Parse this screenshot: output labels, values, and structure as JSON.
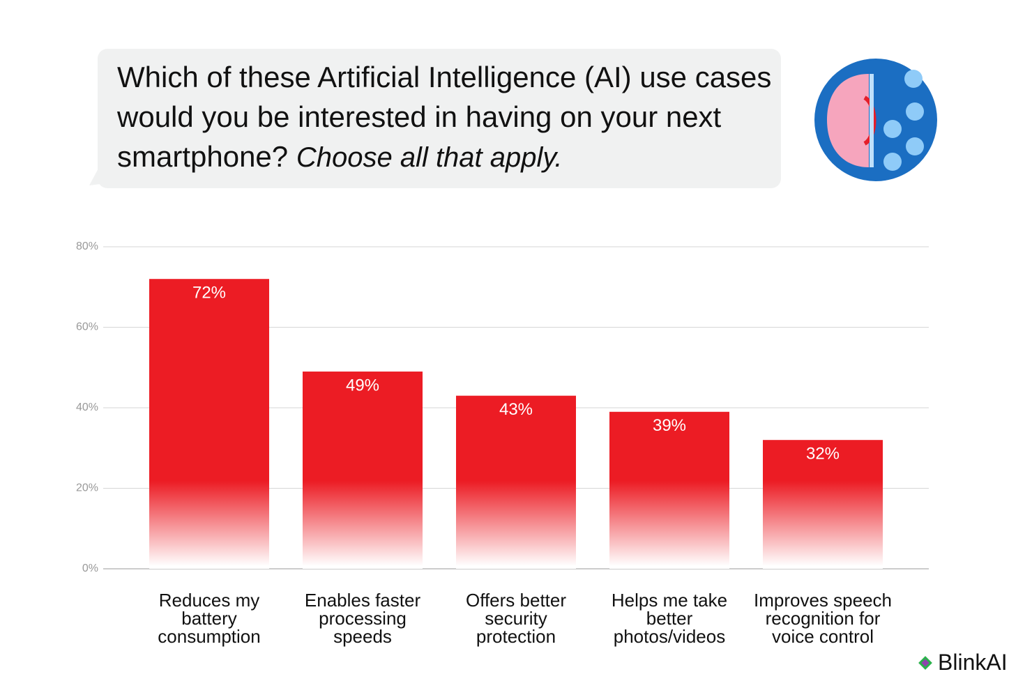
{
  "chart_data": {
    "type": "bar",
    "title": "Which of these Artificial Intelligence (AI) use cases would you be interested in having on your next smartphone?",
    "subtitle": "Choose all that apply.",
    "categories": [
      "Reduces my battery consumption",
      "Enables faster processing speeds",
      "Offers better security protection",
      "Helps me take better photos/videos",
      "Improves speech recognition for voice control"
    ],
    "values": [
      72,
      49,
      43,
      39,
      32
    ],
    "value_labels": [
      "72%",
      "49%",
      "43%",
      "39%",
      "32%"
    ],
    "color": "#ec1c24",
    "ylim": [
      0,
      80
    ],
    "yticks": [
      {
        "value": 0,
        "label": "0%"
      },
      {
        "value": 20,
        "label": "20%"
      },
      {
        "value": 40,
        "label": "40%"
      },
      {
        "value": 60,
        "label": "60%"
      },
      {
        "value": 80,
        "label": "80%"
      }
    ],
    "grid": true,
    "brand": "BlinkAI"
  }
}
